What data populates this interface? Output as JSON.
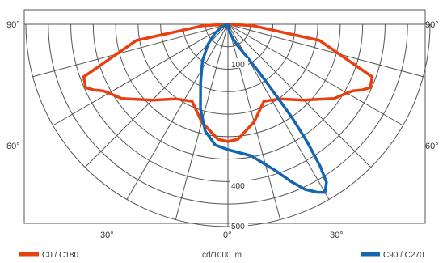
{
  "chart_data": {
    "type": "polar",
    "unit_label": "cd/1000 lm",
    "angle_labels": {
      "top_left": "90°",
      "top_right": "90°",
      "mid_left": "60°",
      "mid_right": "60°",
      "bottom_left": "30°",
      "bottom_center": "0°",
      "bottom_right": "30°"
    },
    "radial_ticks": [
      100,
      400,
      500
    ],
    "radial_max": 500,
    "grid": true,
    "legend_position": "bottom",
    "series": [
      {
        "name": "C0 / C180",
        "color": "#e8400f",
        "angles_deg": [
          -90,
          -87,
          -80,
          -70,
          -66,
          -64,
          -62,
          -60,
          -55,
          -45,
          -35,
          -25,
          -15,
          -5,
          0,
          5,
          15,
          25,
          35,
          45,
          55,
          60,
          62,
          64,
          66,
          70,
          80,
          87,
          90
        ],
        "values": [
          0,
          60,
          230,
          380,
          385,
          370,
          350,
          340,
          320,
          265,
          225,
          210,
          250,
          285,
          290,
          285,
          250,
          210,
          225,
          265,
          320,
          340,
          350,
          370,
          385,
          380,
          230,
          60,
          0
        ]
      },
      {
        "name": "C90 / C270",
        "color": "#1665b0",
        "angles_deg": [
          -90,
          -70,
          -55,
          -45,
          -35,
          -25,
          -18,
          -12,
          -6,
          0,
          10,
          18,
          22,
          25,
          28,
          30,
          32,
          33,
          34,
          34.5,
          34,
          33,
          30,
          25,
          20,
          15,
          10,
          5,
          0,
          0
        ],
        "values": [
          0,
          15,
          40,
          70,
          110,
          160,
          220,
          270,
          300,
          310,
          330,
          380,
          420,
          450,
          470,
          480,
          460,
          420,
          350,
          280,
          200,
          140,
          90,
          60,
          40,
          25,
          15,
          8,
          3,
          0
        ]
      }
    ]
  }
}
